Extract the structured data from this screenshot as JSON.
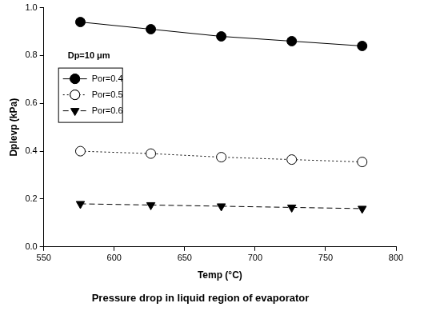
{
  "chart_data": {
    "type": "line",
    "title": "Pressure drop in liquid region of evaporator",
    "x_label": "Temp (°C)",
    "y_label": "Dplevp (kPa)",
    "annotations": [
      "Dp=10 μm"
    ],
    "x": [
      576,
      626,
      676,
      726,
      776
    ],
    "series": [
      {
        "name": "Por=0.4",
        "color": "#000000",
        "marker": "circle",
        "line_style": "solid",
        "values": [
          0.94,
          0.91,
          0.88,
          0.86,
          0.84
        ]
      },
      {
        "name": "Por=0.5",
        "color": "#000000",
        "marker": "circle_open",
        "line_style": "dotted",
        "values": [
          0.4,
          0.39,
          0.375,
          0.365,
          0.355
        ]
      },
      {
        "name": "Por=0.6",
        "color": "#000000",
        "marker": "triangle_down",
        "line_style": "dashed",
        "values": [
          0.18,
          0.175,
          0.17,
          0.165,
          0.16
        ]
      }
    ],
    "xlim": [
      550,
      800
    ],
    "xticks": [
      550,
      600,
      650,
      700,
      750,
      800
    ],
    "ylim": [
      0,
      1
    ],
    "yticks": [
      {
        "value": 0,
        "label": "0.0"
      },
      0.2,
      0.4,
      0.6,
      0.8,
      {
        "value": 1,
        "label": "1.0"
      }
    ],
    "grid": false,
    "legend": "upper left"
  }
}
